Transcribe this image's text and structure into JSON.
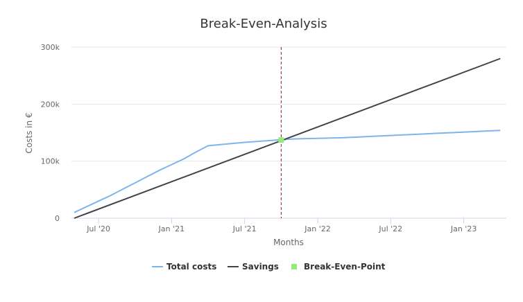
{
  "chart_data": {
    "type": "line",
    "title": "Break-Even-Analysis",
    "xlabel": "Months",
    "ylabel": "Costs in €",
    "x_tick_labels": [
      "Jul '20",
      "Jan '21",
      "Jul '21",
      "Jan '22",
      "Jul '22",
      "Jan '23"
    ],
    "y_tick_labels": [
      "0",
      "100k",
      "200k",
      "300k"
    ],
    "ylim": [
      0,
      300000
    ],
    "grid": "horizontal",
    "legend_position": "bottom",
    "series": [
      {
        "name": "Total costs",
        "color": "#7cb5ec",
        "x": [
          "2020-05",
          "2020-06",
          "2020-07",
          "2020-08",
          "2020-09",
          "2020-10",
          "2020-11",
          "2020-12",
          "2021-01",
          "2021-02",
          "2021-03",
          "2021-04",
          "2021-05",
          "2021-06",
          "2021-07",
          "2021-08",
          "2021-09",
          "2021-10",
          "2021-11",
          "2021-12",
          "2022-01",
          "2022-02",
          "2022-03",
          "2022-04",
          "2022-05",
          "2022-06",
          "2022-07",
          "2022-08",
          "2022-09",
          "2022-10",
          "2022-11",
          "2022-12",
          "2023-01",
          "2023-02",
          "2023-03",
          "2023-04"
        ],
        "values": [
          10000,
          20000,
          30000,
          40000,
          51000,
          62000,
          73000,
          84000,
          94000,
          104000,
          116000,
          127000,
          129000,
          131000,
          133000,
          134500,
          136000,
          137500,
          139000,
          139500,
          140000,
          140500,
          141000,
          142000,
          143000,
          144000,
          145000,
          146000,
          147000,
          148000,
          149000,
          150000,
          151000,
          152000,
          153000,
          154000
        ]
      },
      {
        "name": "Savings",
        "color": "#434348",
        "x": [
          "2020-05",
          "2023-04"
        ],
        "values": [
          0,
          280000
        ]
      }
    ],
    "break_even": {
      "name": "Break-Even-Point",
      "color": "#90ed7d",
      "x": "2021-10",
      "value": 137000
    }
  }
}
